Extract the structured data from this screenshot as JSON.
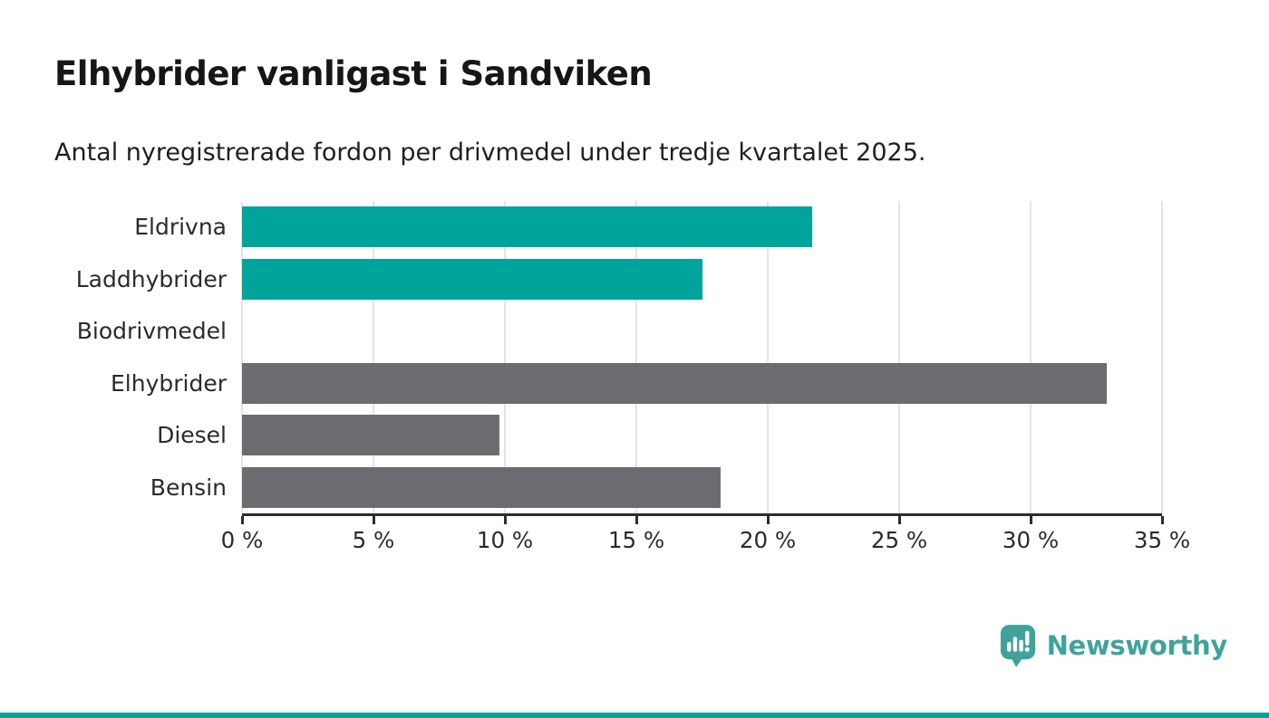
{
  "title": "Elhybrider vanligast i Sandviken",
  "subtitle": "Antal nyregistrerade fordon per drivmedel under tredje kvartalet 2025.",
  "chart_data": {
    "type": "bar",
    "orientation": "horizontal",
    "title": "Elhybrider vanligast i Sandviken",
    "subtitle": "Antal nyregistrerade fordon per drivmedel under tredje kvartalet 2025.",
    "categories": [
      "Eldrivna",
      "Laddhybrider",
      "Biodrivmedel",
      "Elhybrider",
      "Diesel",
      "Bensin"
    ],
    "values": [
      21.7,
      17.5,
      0,
      32.9,
      9.8,
      18.2
    ],
    "bar_colors": [
      "#00a49b",
      "#00a49b",
      "#6e6b70",
      "#6e6b70",
      "#6e6b70",
      "#6e6b70"
    ],
    "xlabel": "",
    "ylabel": "",
    "xlim": [
      0,
      35
    ],
    "x_tick_values": [
      0,
      5,
      10,
      15,
      20,
      25,
      30,
      35
    ],
    "x_tick_labels": [
      "0 %",
      "5 %",
      "10 %",
      "15 %",
      "20 %",
      "25 %",
      "30 %",
      "35 %"
    ],
    "grid": true,
    "legend": false
  },
  "branding": {
    "logo_text": "Newsworthy"
  },
  "colors": {
    "teal": "#00a49b",
    "gray": "#6e6b70",
    "logo": "#3fa39c",
    "axis": "#2d2d2d",
    "gridline": "#e4e4e4",
    "text_dark": "#1f1f1f",
    "accent_strip": "#00a49b"
  }
}
